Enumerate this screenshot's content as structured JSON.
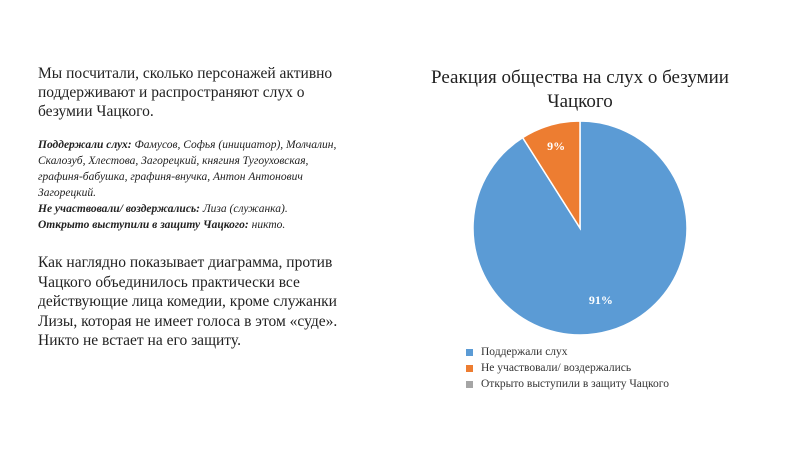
{
  "left": {
    "intro": "Мы посчитали, сколько персонажей активно поддерживают и распространяют слух о безумии Чацкого.",
    "details": [
      {
        "label": "Поддержали слух:",
        "text": " Фамусов, Софья (инициатор), Молчалин, Скалозуб, Хлестова, Загорецкий, княгиня Тугоуховская, графиня-бабушка, графиня-внучка, Антон Антонович Загорецкий."
      },
      {
        "label": "Не участвовали/ воздержались:",
        "text": " Лиза (служанка)."
      },
      {
        "label": "Открыто выступили в защиту Чацкого:",
        "text": " никто."
      }
    ],
    "conclusion": "Как наглядно показывает диаграмма, против Чацкого объединилось практически все действующие лица комедии, кроме служанки Лизы, которая не имеет голоса в этом «суде». Никто не встает на его защиту."
  },
  "chart_data": {
    "type": "pie",
    "title": "Реакция общества на слух о безумии Чацкого",
    "categories": [
      "Поддержали слух",
      "Не участвовали/ воздержались",
      "Открыто выступили в защиту Чацкого"
    ],
    "values": [
      91,
      9,
      0
    ],
    "data_labels": [
      "91%",
      "9%",
      ""
    ],
    "colors": [
      "#5b9bd5",
      "#ed7d31",
      "#a5a5a5"
    ],
    "legend_position": "bottom"
  }
}
